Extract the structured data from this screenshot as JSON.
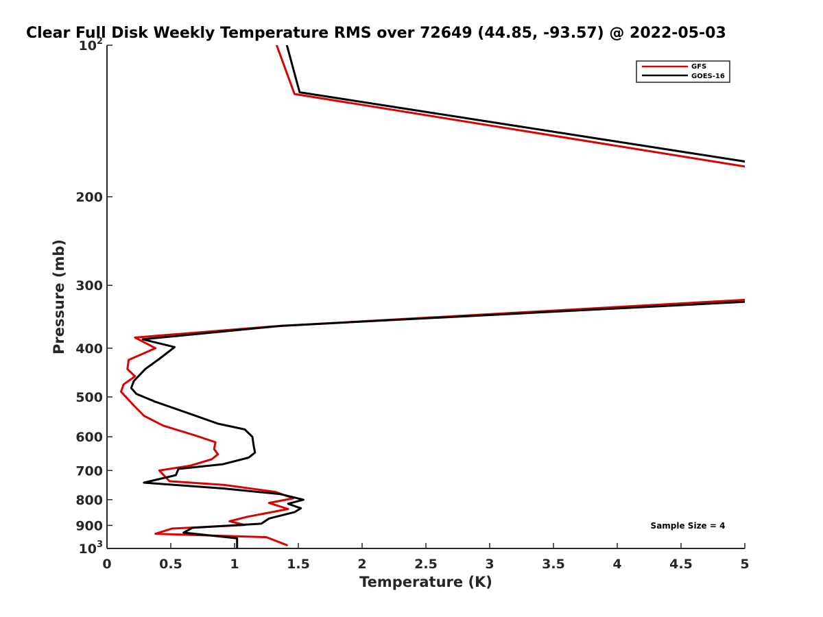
{
  "chart_data": {
    "type": "line",
    "title": "Clear Full Disk Weekly Temperature RMS over 72649 (44.85, -93.57) @ 2022-05-03",
    "xlabel": "Temperature (K)",
    "ylabel": "Pressure (mb)",
    "xlim": [
      0,
      5
    ],
    "ylim": [
      100,
      1000
    ],
    "yscale": "log",
    "y_reversed": true,
    "grid": false,
    "legend_position": "top-right",
    "x_ticks": [
      "0",
      "0.5",
      "1",
      "1.5",
      "2",
      "2.5",
      "3",
      "3.5",
      "4",
      "4.5",
      "5"
    ],
    "x_tick_values": [
      0,
      0.5,
      1,
      1.5,
      2,
      2.5,
      3,
      3.5,
      4,
      4.5,
      5
    ],
    "y_ticks": [
      {
        "value": 100,
        "base": "10",
        "exp": "2"
      },
      {
        "value": 200,
        "base": "200",
        "exp": ""
      },
      {
        "value": 300,
        "base": "300",
        "exp": ""
      },
      {
        "value": 400,
        "base": "400",
        "exp": ""
      },
      {
        "value": 500,
        "base": "500",
        "exp": ""
      },
      {
        "value": 600,
        "base": "600",
        "exp": ""
      },
      {
        "value": 700,
        "base": "700",
        "exp": ""
      },
      {
        "value": 800,
        "base": "800",
        "exp": ""
      },
      {
        "value": 900,
        "base": "900",
        "exp": ""
      },
      {
        "value": 1000,
        "base": "10",
        "exp": "3"
      }
    ],
    "annotation": "Sample Size = 4",
    "series": [
      {
        "name": "GFS",
        "color": "#dd0000",
        "points": [
          [
            1.33,
            100
          ],
          [
            1.47,
            125
          ],
          [
            5.05,
            175
          ],
          [
            5.05,
            320
          ],
          [
            1.3,
            362
          ],
          [
            0.22,
            381
          ],
          [
            0.38,
            400
          ],
          [
            0.17,
            422
          ],
          [
            0.16,
            440
          ],
          [
            0.22,
            455
          ],
          [
            0.13,
            472
          ],
          [
            0.11,
            488
          ],
          [
            0.21,
            520
          ],
          [
            0.29,
            545
          ],
          [
            0.44,
            570
          ],
          [
            0.68,
            595
          ],
          [
            0.85,
            615
          ],
          [
            0.84,
            635
          ],
          [
            0.87,
            650
          ],
          [
            0.82,
            665
          ],
          [
            0.65,
            685
          ],
          [
            0.41,
            700
          ],
          [
            0.49,
            735
          ],
          [
            0.92,
            748
          ],
          [
            1.32,
            772
          ],
          [
            1.46,
            795
          ],
          [
            1.27,
            812
          ],
          [
            1.42,
            835
          ],
          [
            1.1,
            865
          ],
          [
            0.96,
            883
          ],
          [
            1.08,
            898
          ],
          [
            0.51,
            913
          ],
          [
            0.38,
            935
          ],
          [
            1.25,
            950
          ],
          [
            1.41,
            985
          ]
        ]
      },
      {
        "name": "GOES-16",
        "color": "#000000",
        "points": [
          [
            1.41,
            100
          ],
          [
            1.51,
            124
          ],
          [
            5.05,
            171
          ],
          [
            5.05,
            323
          ],
          [
            1.37,
            361
          ],
          [
            0.28,
            384
          ],
          [
            0.53,
            398
          ],
          [
            0.41,
            420
          ],
          [
            0.3,
            440
          ],
          [
            0.21,
            465
          ],
          [
            0.19,
            480
          ],
          [
            0.23,
            493
          ],
          [
            0.37,
            510
          ],
          [
            0.74,
            550
          ],
          [
            0.87,
            565
          ],
          [
            1.08,
            580
          ],
          [
            1.14,
            600
          ],
          [
            1.15,
            625
          ],
          [
            1.16,
            645
          ],
          [
            1.11,
            660
          ],
          [
            0.91,
            680
          ],
          [
            0.56,
            695
          ],
          [
            0.54,
            715
          ],
          [
            0.29,
            740
          ],
          [
            0.91,
            760
          ],
          [
            1.36,
            780
          ],
          [
            1.54,
            800
          ],
          [
            1.42,
            815
          ],
          [
            1.52,
            832
          ],
          [
            1.47,
            847
          ],
          [
            1.27,
            872
          ],
          [
            1.21,
            893
          ],
          [
            0.67,
            910
          ],
          [
            0.6,
            930
          ],
          [
            1.02,
            955
          ],
          [
            1.02,
            995
          ]
        ]
      }
    ]
  }
}
